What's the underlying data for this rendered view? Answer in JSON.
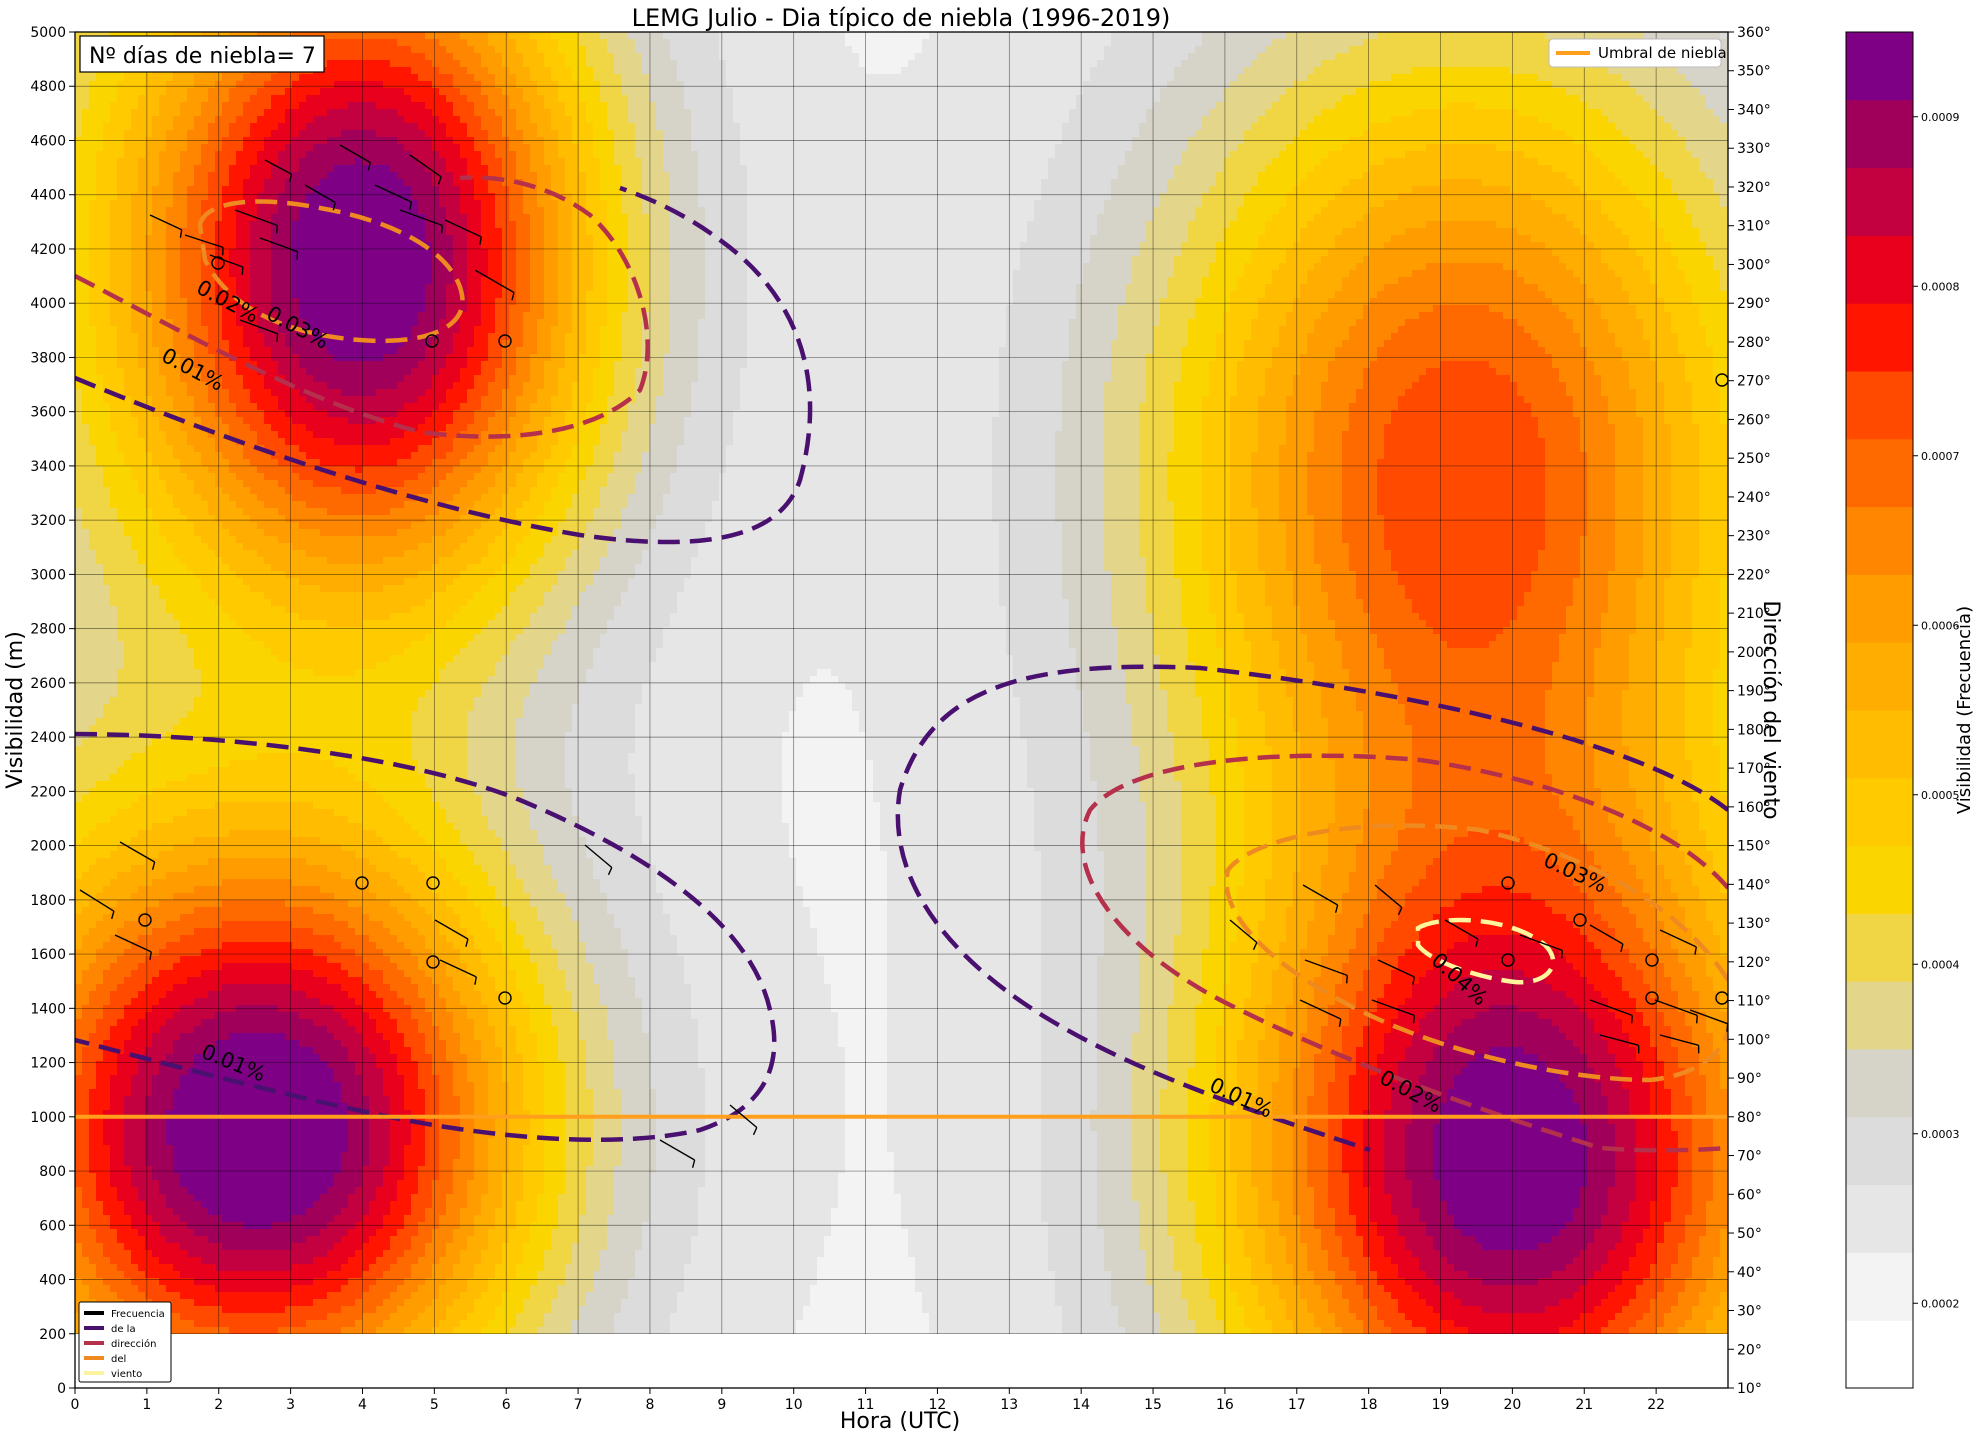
{
  "chart_data": {
    "type": "heatmap",
    "title": "LEMG Julio  - Dia típico de niebla (1996-2019)",
    "annotation": "Nº días de niebla= 7",
    "xlabel": "Hora (UTC)",
    "ylabel": "Visibilidad (m)",
    "y2label": "Dirección del viento",
    "colorbar_label": "Visibilidad (Frecuencia)",
    "x_ticks": [
      "0",
      "1",
      "2",
      "3",
      "4",
      "5",
      "6",
      "7",
      "8",
      "9",
      "10",
      "11",
      "12",
      "13",
      "14",
      "15",
      "16",
      "17",
      "18",
      "19",
      "20",
      "21",
      "22"
    ],
    "xlim": [
      0,
      23
    ],
    "y_ticks": [
      0,
      200,
      400,
      600,
      800,
      1000,
      1200,
      1400,
      1600,
      1800,
      2000,
      2200,
      2400,
      2600,
      2800,
      3000,
      3200,
      3400,
      3600,
      3800,
      4000,
      4200,
      4400,
      4600,
      4800,
      5000
    ],
    "ylim": [
      0,
      5000
    ],
    "y2_ticks": [
      "10°",
      "20°",
      "30°",
      "40°",
      "50°",
      "60°",
      "70°",
      "80°",
      "90°",
      "100°",
      "110°",
      "120°",
      "130°",
      "140°",
      "150°",
      "160°",
      "170°",
      "180°",
      "190°",
      "200°",
      "210°",
      "220°",
      "230°",
      "240°",
      "250°",
      "260°",
      "270°",
      "280°",
      "290°",
      "300°",
      "310°",
      "320°",
      "330°",
      "340°",
      "350°",
      "360°"
    ],
    "y2lim": [
      10,
      360
    ],
    "colorbar_ticks": [
      "0.0002",
      "0.0003",
      "0.0004",
      "0.0005",
      "0.0006",
      "0.0007",
      "0.0008",
      "0.0009"
    ],
    "colorbar_range": [
      0.00015,
      0.00095
    ],
    "colorbar_colors": [
      "#ffffff",
      "#f3f3f3",
      "#e6e6e6",
      "#dcdcdc",
      "#d6d3c8",
      "#e3d68a",
      "#f0d545",
      "#fbd500",
      "#ffcb00",
      "#ffbc00",
      "#ffad00",
      "#ff9c00",
      "#ff8600",
      "#ff6a00",
      "#ff4a00",
      "#ff1500",
      "#e8001c",
      "#c30040",
      "#a0005a",
      "#7e0085"
    ],
    "threshold": {
      "name": "Umbral de niebla",
      "value": 1000,
      "color": "#ff9f1c"
    },
    "legend_position": "top-right",
    "wind_legend": {
      "position": "bottom-left",
      "entries": [
        "Frecuencia",
        "de  la",
        "dirección",
        "del",
        "viento"
      ],
      "colors": [
        "#000000",
        "#4a1070",
        "#b5304a",
        "#ef8a20",
        "#fcf3a0"
      ]
    },
    "density_peaks": [
      {
        "hour": 4.0,
        "visibility": 4150,
        "value": 0.00095
      },
      {
        "hour": 2.7,
        "visibility": 950,
        "value": 0.00095
      },
      {
        "hour": 19.3,
        "visibility": 3400,
        "value": 0.00072
      },
      {
        "hour": 20.0,
        "visibility": 780,
        "value": 0.00091
      }
    ],
    "contour_labels": [
      "0.01%",
      "0.02%",
      "0.03%",
      "0.01%",
      "0.01%",
      "0.02%",
      "0.03%",
      "0.04%"
    ],
    "grid": true
  }
}
